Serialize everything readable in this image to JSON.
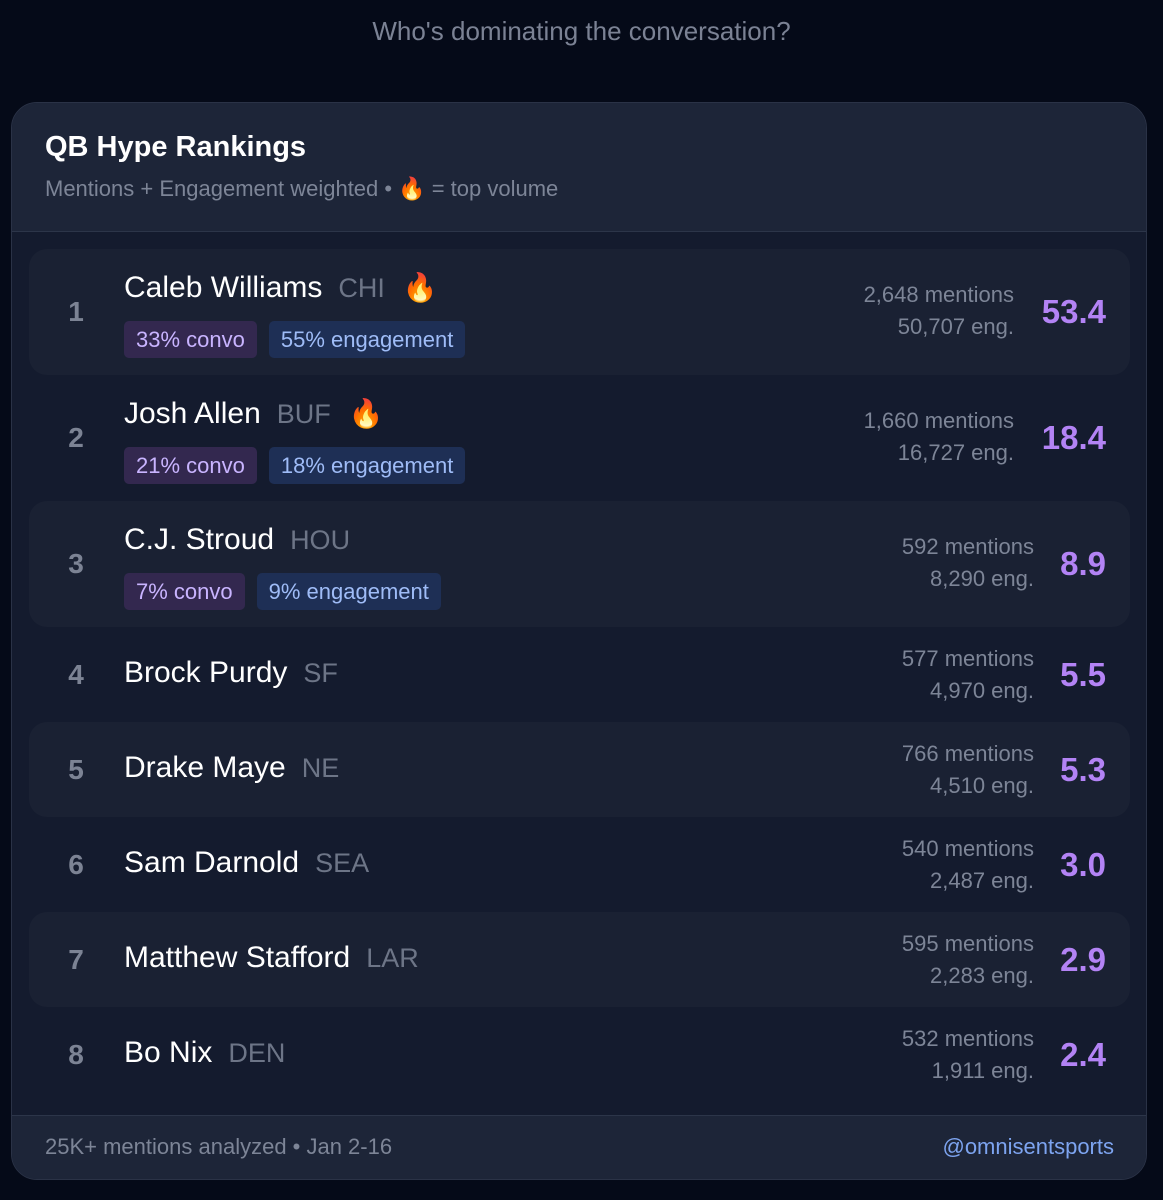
{
  "page": {
    "heading": "Who's dominating the conversation?"
  },
  "card": {
    "title": "QB Hype Rankings",
    "subtitle": "Mentions + Engagement weighted • 🔥 = top volume"
  },
  "rows": [
    {
      "rank": "1",
      "name": "Caleb Williams",
      "team": "CHI",
      "fire": "🔥",
      "convo": "33% convo",
      "engagement": "55% engagement",
      "mentions": "2,648 mentions",
      "eng": "50,707 eng.",
      "score": "53.4"
    },
    {
      "rank": "2",
      "name": "Josh Allen",
      "team": "BUF",
      "fire": "🔥",
      "convo": "21% convo",
      "engagement": "18% engagement",
      "mentions": "1,660 mentions",
      "eng": "16,727 eng.",
      "score": "18.4"
    },
    {
      "rank": "3",
      "name": "C.J. Stroud",
      "team": "HOU",
      "convo": "7% convo",
      "engagement": "9% engagement",
      "mentions": "592 mentions",
      "eng": "8,290 eng.",
      "score": "8.9"
    },
    {
      "rank": "4",
      "name": "Brock Purdy",
      "team": "SF",
      "mentions": "577 mentions",
      "eng": "4,970 eng.",
      "score": "5.5"
    },
    {
      "rank": "5",
      "name": "Drake Maye",
      "team": "NE",
      "mentions": "766 mentions",
      "eng": "4,510 eng.",
      "score": "5.3"
    },
    {
      "rank": "6",
      "name": "Sam Darnold",
      "team": "SEA",
      "mentions": "540 mentions",
      "eng": "2,487 eng.",
      "score": "3.0"
    },
    {
      "rank": "7",
      "name": "Matthew Stafford",
      "team": "LAR",
      "mentions": "595 mentions",
      "eng": "2,283 eng.",
      "score": "2.9"
    },
    {
      "rank": "8",
      "name": "Bo Nix",
      "team": "DEN",
      "mentions": "532 mentions",
      "eng": "1,911 eng.",
      "score": "2.4"
    }
  ],
  "footer": {
    "left": "25K+ mentions analyzed • Jan 2-16",
    "right": "@omnisentsports"
  },
  "colors": {
    "background": "#050a18",
    "card": "#141b2e",
    "score": "#b383f5",
    "convo_tag": "#33284f",
    "engagement_tag": "#1e2f55",
    "link": "#7da4f0"
  }
}
